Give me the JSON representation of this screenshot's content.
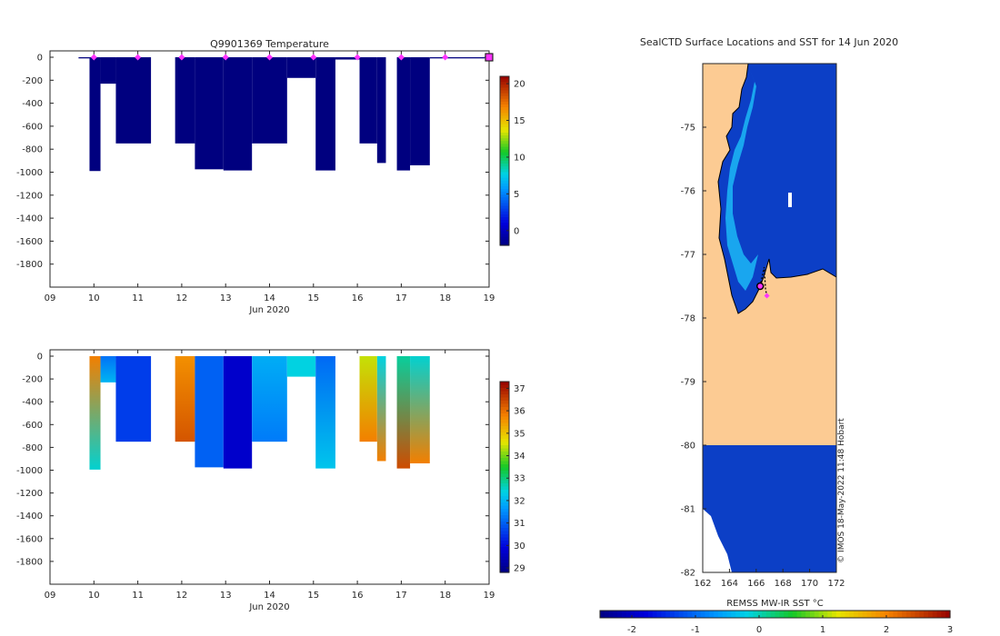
{
  "chart_data": [
    {
      "type": "bar",
      "title": "Q9901369  Temperature",
      "xlabel": "Jun 2020",
      "ylabel": "",
      "x_ticks": [
        "09",
        "10",
        "11",
        "12",
        "13",
        "14",
        "15",
        "16",
        "17",
        "18",
        "19"
      ],
      "xlim": [
        9,
        19
      ],
      "ylim": [
        -2000,
        50
      ],
      "y_ticks": [
        "0",
        "-200",
        "-400",
        "-600",
        "-800",
        "-1000",
        "-1200",
        "-1400",
        "-1600",
        "-1800"
      ],
      "colorbar": {
        "ticks": [
          "20",
          "15",
          "10",
          "5",
          "0"
        ],
        "range": [
          -2,
          21
        ]
      },
      "profiles": [
        {
          "x0": 9.65,
          "x1": 9.9,
          "depth": 10
        },
        {
          "x0": 9.9,
          "x1": 10.15,
          "depth": 990
        },
        {
          "x0": 10.15,
          "x1": 10.5,
          "depth": 230
        },
        {
          "x0": 10.5,
          "x1": 11.3,
          "depth": 750
        },
        {
          "x0": 11.85,
          "x1": 12.3,
          "depth": 750
        },
        {
          "x0": 12.3,
          "x1": 12.95,
          "depth": 975
        },
        {
          "x0": 12.95,
          "x1": 13.6,
          "depth": 985
        },
        {
          "x0": 13.6,
          "x1": 14.4,
          "depth": 750
        },
        {
          "x0": 14.4,
          "x1": 15.05,
          "depth": 180
        },
        {
          "x0": 15.05,
          "x1": 15.5,
          "depth": 985
        },
        {
          "x0": 15.5,
          "x1": 16.05,
          "depth": 20
        },
        {
          "x0": 16.05,
          "x1": 16.45,
          "depth": 750
        },
        {
          "x0": 16.45,
          "x1": 16.65,
          "depth": 920
        },
        {
          "x0": 16.9,
          "x1": 17.2,
          "depth": 985
        },
        {
          "x0": 17.2,
          "x1": 17.65,
          "depth": 940
        },
        {
          "x0": 17.65,
          "x1": 18.9,
          "depth": 10
        }
      ],
      "surface_markers": [
        10,
        11,
        12,
        13,
        14,
        15,
        16,
        17,
        18
      ],
      "last_marker": 19
    },
    {
      "type": "bar",
      "title": "",
      "xlabel": "Jun 2020",
      "ylabel": "",
      "x_ticks": [
        "09",
        "10",
        "11",
        "12",
        "13",
        "14",
        "15",
        "16",
        "17",
        "18",
        "19"
      ],
      "xlim": [
        9,
        19
      ],
      "ylim": [
        -2000,
        50
      ],
      "y_ticks": [
        "0",
        "-200",
        "-400",
        "-600",
        "-800",
        "-1000",
        "-1200",
        "-1400",
        "-1600",
        "-1800"
      ],
      "colorbar": {
        "ticks": [
          "37",
          "36",
          "35",
          "34",
          "33",
          "32",
          "31",
          "30",
          "29"
        ],
        "range": [
          28.8,
          37.3
        ]
      },
      "profiles": [
        {
          "x0": 9.9,
          "x1": 10.15,
          "depth": 995,
          "value_top": 35.8,
          "value_bottom": 32.5
        },
        {
          "x0": 10.15,
          "x1": 10.5,
          "depth": 230,
          "value_top": 31.2,
          "value_bottom": 32.0
        },
        {
          "x0": 10.5,
          "x1": 11.3,
          "depth": 750,
          "value_top": 30.6,
          "value_bottom": 30.6
        },
        {
          "x0": 11.85,
          "x1": 12.3,
          "depth": 750,
          "value_top": 35.6,
          "value_bottom": 36.3
        },
        {
          "x0": 12.3,
          "x1": 12.95,
          "depth": 975,
          "value_top": 31.0,
          "value_bottom": 31.0
        },
        {
          "x0": 12.95,
          "x1": 13.6,
          "depth": 985,
          "value_top": 29.7,
          "value_bottom": 29.7
        },
        {
          "x0": 13.6,
          "x1": 14.4,
          "depth": 750,
          "value_top": 31.9,
          "value_bottom": 31.3
        },
        {
          "x0": 14.4,
          "x1": 15.05,
          "depth": 180,
          "value_top": 32.4,
          "value_bottom": 32.4
        },
        {
          "x0": 15.05,
          "x1": 15.5,
          "depth": 985,
          "value_top": 31.1,
          "value_bottom": 32.2
        },
        {
          "x0": 16.05,
          "x1": 16.45,
          "depth": 750,
          "value_top": 34.4,
          "value_bottom": 35.8
        },
        {
          "x0": 16.45,
          "x1": 16.65,
          "depth": 920,
          "value_top": 32.4,
          "value_bottom": 35.8
        },
        {
          "x0": 16.9,
          "x1": 17.2,
          "depth": 985,
          "value_top": 32.8,
          "value_bottom": 36.4
        },
        {
          "x0": 17.2,
          "x1": 17.65,
          "depth": 940,
          "value_top": 32.5,
          "value_bottom": 35.8
        }
      ]
    },
    {
      "type": "heatmap",
      "title": "SealCTD Surface Locations and SST for 14 Jun 2020",
      "xlabel": "",
      "x_ticks": [
        "162",
        "164",
        "166",
        "168",
        "170",
        "172"
      ],
      "y_ticks": [
        "-75",
        "-76",
        "-77",
        "-78",
        "-79",
        "-80",
        "-81",
        "-82"
      ],
      "xlim": [
        162,
        172
      ],
      "ylim": [
        -82,
        -74
      ],
      "colorbar_label": "REMSS MW-IR SST °C",
      "colorbar_ticks": [
        "-2",
        "-1",
        "0",
        "1",
        "2",
        "3"
      ],
      "colorbar_range": [
        -2.5,
        3
      ],
      "land_color": "#fccb93",
      "ocean_color": "#0c3fc6",
      "track": [
        {
          "lon": 166.3,
          "lat": -77.5
        },
        {
          "lon": 166.5,
          "lat": -77.3
        },
        {
          "lon": 166.6,
          "lat": -77.2
        },
        {
          "lon": 166.7,
          "lat": -77.55
        },
        {
          "lon": 166.8,
          "lat": -77.65
        }
      ],
      "current_position": {
        "lon": 166.3,
        "lat": -77.5
      },
      "watermark": "© IMOS 18-May-2022 11:48 Hobart"
    }
  ]
}
